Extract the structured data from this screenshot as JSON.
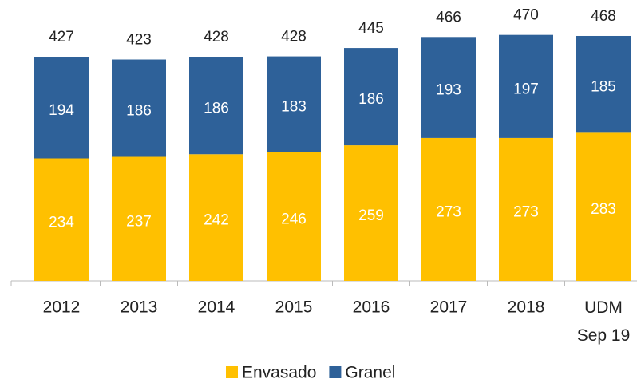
{
  "chart_data": {
    "type": "stacked_bar",
    "categories": [
      "2012",
      "2013",
      "2014",
      "2015",
      "2016",
      "2017",
      "2018",
      "UDM\nSep 19"
    ],
    "series": [
      {
        "name": "Envasado",
        "color": "#ffc000",
        "values": [
          234,
          237,
          242,
          246,
          259,
          273,
          273,
          283
        ]
      },
      {
        "name": "Granel",
        "color": "#2e6199",
        "values": [
          194,
          186,
          186,
          183,
          186,
          193,
          197,
          185
        ]
      }
    ],
    "totals": [
      427,
      423,
      428,
      428,
      445,
      466,
      470,
      468
    ],
    "ylim": [
      0,
      500
    ],
    "legend": "bottom"
  }
}
